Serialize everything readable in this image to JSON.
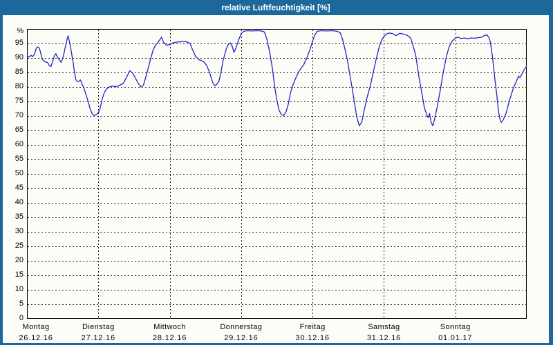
{
  "window": {
    "title": "relative Luftfeuchtigkeit [%]"
  },
  "colors": {
    "titlebar_bg": "#1c689c",
    "window_border": "#1c689c",
    "chart_bg": "#fbfdf6",
    "line": "#2222c8",
    "grid": "#1a1a1a",
    "text": "#000000",
    "title_text": "#ffffff"
  },
  "chart_data": {
    "type": "line",
    "title": "relative Luftfeuchtigkeit [%]",
    "xlabel": "",
    "ylabel": "%",
    "ylim": [
      0,
      100
    ],
    "grid": "dotted",
    "legend": "none",
    "y_ticks": [
      0,
      5,
      10,
      15,
      20,
      25,
      30,
      35,
      40,
      45,
      50,
      55,
      60,
      65,
      70,
      75,
      80,
      85,
      90,
      95
    ],
    "x_days": [
      {
        "name": "Montag",
        "date": "26.12.16"
      },
      {
        "name": "Dienstag",
        "date": "27.12.16"
      },
      {
        "name": "Mittwoch",
        "date": "28.12.16"
      },
      {
        "name": "Donnerstag",
        "date": "29.12.16"
      },
      {
        "name": "Freitag",
        "date": "30.12.16"
      },
      {
        "name": "Samstag",
        "date": "31.12.16"
      },
      {
        "name": "Sonntag",
        "date": "01.01.17"
      }
    ],
    "x_unit": "days_since_monday_00h",
    "x_range": [
      0,
      7
    ],
    "series": [
      {
        "name": "relative Luftfeuchtigkeit",
        "points": [
          [
            0.0,
            90.8
          ],
          [
            0.03,
            90.3
          ],
          [
            0.055,
            90.9
          ],
          [
            0.08,
            90.5
          ],
          [
            0.105,
            91.2
          ],
          [
            0.13,
            93.3
          ],
          [
            0.15,
            93.8
          ],
          [
            0.17,
            93.5
          ],
          [
            0.19,
            92.0
          ],
          [
            0.21,
            89.8
          ],
          [
            0.235,
            89.0
          ],
          [
            0.26,
            88.6
          ],
          [
            0.29,
            88.4
          ],
          [
            0.315,
            87.3
          ],
          [
            0.335,
            87.0
          ],
          [
            0.36,
            88.8
          ],
          [
            0.385,
            90.8
          ],
          [
            0.405,
            91.5
          ],
          [
            0.43,
            90.2
          ],
          [
            0.455,
            89.3
          ],
          [
            0.48,
            88.5
          ],
          [
            0.51,
            90.6
          ],
          [
            0.54,
            94.2
          ],
          [
            0.565,
            96.8
          ],
          [
            0.578,
            97.6
          ],
          [
            0.59,
            96.2
          ],
          [
            0.61,
            93.8
          ],
          [
            0.63,
            90.8
          ],
          [
            0.65,
            88.0
          ],
          [
            0.665,
            85.1
          ],
          [
            0.685,
            82.5
          ],
          [
            0.705,
            81.9
          ],
          [
            0.73,
            82.0
          ],
          [
            0.75,
            82.4
          ],
          [
            0.765,
            81.4
          ],
          [
            0.8,
            79.5
          ],
          [
            0.83,
            77.1
          ],
          [
            0.86,
            74.8
          ],
          [
            0.885,
            72.4
          ],
          [
            0.92,
            70.4
          ],
          [
            0.945,
            70.2
          ],
          [
            0.97,
            70.4
          ],
          [
            0.995,
            71.0
          ],
          [
            1.02,
            72.2
          ],
          [
            1.05,
            75.5
          ],
          [
            1.08,
            77.8
          ],
          [
            1.11,
            79.2
          ],
          [
            1.15,
            80.0
          ],
          [
            1.2,
            80.3
          ],
          [
            1.25,
            80.1
          ],
          [
            1.3,
            80.6
          ],
          [
            1.35,
            81.2
          ],
          [
            1.4,
            83.6
          ],
          [
            1.44,
            85.6
          ],
          [
            1.48,
            84.8
          ],
          [
            1.52,
            83.0
          ],
          [
            1.56,
            81.2
          ],
          [
            1.595,
            80.0
          ],
          [
            1.63,
            80.6
          ],
          [
            1.67,
            83.8
          ],
          [
            1.72,
            88.6
          ],
          [
            1.765,
            92.6
          ],
          [
            1.8,
            94.4
          ],
          [
            1.84,
            95.5
          ],
          [
            1.885,
            97.2
          ],
          [
            1.915,
            95.3
          ],
          [
            1.955,
            94.4
          ],
          [
            2.0,
            94.6
          ],
          [
            2.04,
            95.2
          ],
          [
            2.1,
            95.5
          ],
          [
            2.16,
            95.6
          ],
          [
            2.22,
            95.7
          ],
          [
            2.255,
            95.4
          ],
          [
            2.285,
            95.0
          ],
          [
            2.31,
            93.4
          ],
          [
            2.36,
            90.6
          ],
          [
            2.41,
            89.4
          ],
          [
            2.45,
            89.0
          ],
          [
            2.48,
            88.6
          ],
          [
            2.52,
            87.3
          ],
          [
            2.56,
            84.8
          ],
          [
            2.6,
            81.6
          ],
          [
            2.63,
            80.4
          ],
          [
            2.66,
            80.9
          ],
          [
            2.69,
            82.0
          ],
          [
            2.72,
            85.4
          ],
          [
            2.75,
            89.4
          ],
          [
            2.79,
            93.0
          ],
          [
            2.82,
            94.7
          ],
          [
            2.85,
            95.2
          ],
          [
            2.875,
            94.0
          ],
          [
            2.9,
            91.9
          ],
          [
            2.93,
            93.6
          ],
          [
            2.965,
            96.2
          ],
          [
            3.0,
            98.4
          ],
          [
            3.035,
            99.2
          ],
          [
            3.09,
            99.4
          ],
          [
            3.15,
            99.3
          ],
          [
            3.22,
            99.4
          ],
          [
            3.28,
            99.3
          ],
          [
            3.325,
            99.0
          ],
          [
            3.36,
            96.5
          ],
          [
            3.4,
            92.0
          ],
          [
            3.44,
            86.0
          ],
          [
            3.47,
            80.0
          ],
          [
            3.5,
            75.5
          ],
          [
            3.53,
            72.0
          ],
          [
            3.565,
            70.4
          ],
          [
            3.6,
            70.2
          ],
          [
            3.63,
            71.5
          ],
          [
            3.66,
            74.0
          ],
          [
            3.69,
            77.9
          ],
          [
            3.72,
            80.3
          ],
          [
            3.76,
            82.8
          ],
          [
            3.81,
            85.4
          ],
          [
            3.85,
            86.8
          ],
          [
            3.88,
            87.8
          ],
          [
            3.92,
            90.0
          ],
          [
            3.96,
            92.6
          ],
          [
            4.0,
            95.7
          ],
          [
            4.03,
            97.8
          ],
          [
            4.065,
            99.2
          ],
          [
            4.12,
            99.4
          ],
          [
            4.2,
            99.3
          ],
          [
            4.28,
            99.4
          ],
          [
            4.34,
            99.2
          ],
          [
            4.385,
            98.8
          ],
          [
            4.42,
            96.5
          ],
          [
            4.45,
            93.5
          ],
          [
            4.49,
            89.0
          ],
          [
            4.52,
            84.5
          ],
          [
            4.555,
            79.5
          ],
          [
            4.59,
            74.0
          ],
          [
            4.62,
            69.5
          ],
          [
            4.655,
            66.6
          ],
          [
            4.69,
            67.9
          ],
          [
            4.72,
            71.5
          ],
          [
            4.76,
            76.0
          ],
          [
            4.81,
            80.5
          ],
          [
            4.85,
            85.0
          ],
          [
            4.89,
            89.5
          ],
          [
            4.93,
            93.5
          ],
          [
            4.965,
            96.0
          ],
          [
            5.0,
            97.4
          ],
          [
            5.03,
            98.2
          ],
          [
            5.07,
            98.6
          ],
          [
            5.12,
            98.4
          ],
          [
            5.17,
            97.7
          ],
          [
            5.22,
            98.5
          ],
          [
            5.265,
            98.3
          ],
          [
            5.31,
            98.0
          ],
          [
            5.34,
            97.6
          ],
          [
            5.375,
            96.8
          ],
          [
            5.41,
            94.0
          ],
          [
            5.445,
            91.0
          ],
          [
            5.49,
            83.5
          ],
          [
            5.53,
            78.0
          ],
          [
            5.565,
            73.0
          ],
          [
            5.6,
            70.3
          ],
          [
            5.62,
            69.4
          ],
          [
            5.64,
            70.8
          ],
          [
            5.66,
            67.8
          ],
          [
            5.685,
            66.6
          ],
          [
            5.71,
            69.0
          ],
          [
            5.745,
            73.0
          ],
          [
            5.79,
            79.0
          ],
          [
            5.83,
            85.0
          ],
          [
            5.875,
            90.5
          ],
          [
            5.915,
            94.0
          ],
          [
            5.955,
            95.8
          ],
          [
            6.0,
            96.8
          ],
          [
            6.04,
            97.2
          ],
          [
            6.08,
            96.7
          ],
          [
            6.125,
            96.9
          ],
          [
            6.17,
            96.6
          ],
          [
            6.22,
            96.9
          ],
          [
            6.27,
            96.8
          ],
          [
            6.32,
            97.0
          ],
          [
            6.37,
            97.2
          ],
          [
            6.41,
            97.8
          ],
          [
            6.445,
            97.9
          ],
          [
            6.47,
            97.0
          ],
          [
            6.49,
            95.5
          ],
          [
            6.52,
            90.5
          ],
          [
            6.55,
            83.5
          ],
          [
            6.58,
            77.5
          ],
          [
            6.605,
            71.5
          ],
          [
            6.63,
            68.2
          ],
          [
            6.645,
            67.8
          ],
          [
            6.67,
            68.6
          ],
          [
            6.71,
            70.8
          ],
          [
            6.76,
            75.5
          ],
          [
            6.81,
            79.4
          ],
          [
            6.86,
            82.2
          ],
          [
            6.885,
            83.8
          ],
          [
            6.905,
            83.2
          ],
          [
            6.935,
            84.6
          ],
          [
            6.97,
            86.2
          ],
          [
            7.0,
            87.2
          ]
        ]
      }
    ]
  }
}
